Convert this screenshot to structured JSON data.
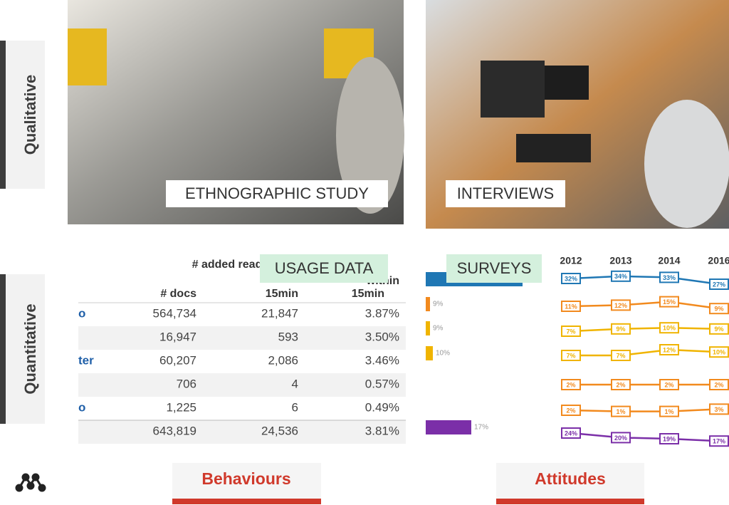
{
  "side_labels": [
    "Qualitative",
    "Quantitative"
  ],
  "panels": {
    "ethnographic": "ETHNOGRAPHIC STUDY",
    "interviews": "INTERVIEWS",
    "usage": "USAGE DATA",
    "surveys": "SURVEYS"
  },
  "table": {
    "headers": [
      "# docs",
      "# added read within",
      "15min",
      "within",
      "15min"
    ],
    "rows": [
      {
        "label": "o",
        "cells": [
          "564,734",
          "21,847",
          "3.87%"
        ]
      },
      {
        "cells": [
          "16,947",
          "593",
          "3.50%"
        ]
      },
      {
        "label": "ter",
        "cells": [
          "60,207",
          "2,086",
          "3.46%"
        ]
      },
      {
        "cells": [
          "706",
          "4",
          "0.57%"
        ]
      },
      {
        "label": "o",
        "cells": [
          "1,225",
          "6",
          "0.49%"
        ]
      },
      {
        "cells": [
          "643,819",
          "24,536",
          "3.81%"
        ]
      }
    ]
  },
  "survey_bars": [
    "9%",
    "9%",
    "10%",
    "17%"
  ],
  "survey_chart": {
    "years": [
      "2012",
      "2013",
      "2014",
      "2016"
    ],
    "series": [
      {
        "color": "#1f77b4",
        "values": [
          32,
          34,
          33,
          27
        ],
        "value_labels": [
          "32%",
          "34%",
          "33%",
          "27%"
        ]
      },
      {
        "color": "#f28a1e",
        "values": [
          11,
          12,
          15,
          9
        ],
        "value_labels": [
          "11%",
          "12%",
          "15%",
          "9%"
        ]
      },
      {
        "color": "#f0b400",
        "values": [
          7,
          9,
          10,
          9
        ],
        "value_labels": [
          "7%",
          "9%",
          "10%",
          "9%"
        ]
      },
      {
        "color": "#f0b400",
        "values": [
          7,
          7,
          12,
          10
        ],
        "value_labels": [
          "7%",
          "7%",
          "12%",
          "10%"
        ]
      },
      {
        "color": "#f28a1e",
        "values": [
          2,
          2,
          2,
          2
        ],
        "value_labels": [
          "2%",
          "2%",
          "2%",
          "2%"
        ]
      },
      {
        "color": "#f28a1e",
        "values": [
          2,
          1,
          1,
          3
        ],
        "value_labels": [
          "2%",
          "1%",
          "1%",
          "3%"
        ]
      },
      {
        "color": "#7b2fa8",
        "values": [
          24,
          20,
          19,
          17
        ],
        "value_labels": [
          "24%",
          "20%",
          "19%",
          "17%"
        ]
      }
    ]
  },
  "footer": {
    "left": "Behaviours",
    "right": "Attitudes"
  }
}
